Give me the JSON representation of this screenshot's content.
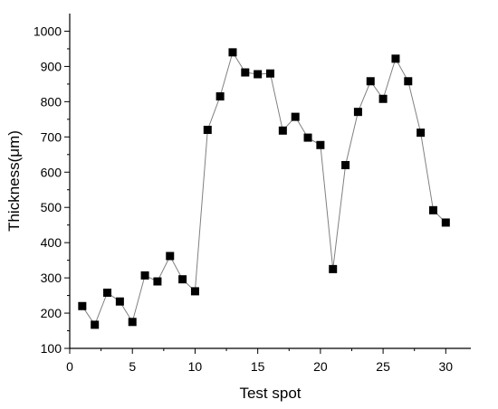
{
  "chart_data": {
    "type": "line",
    "title": "",
    "xlabel": "Test spot",
    "ylabel": "Thickness(μm)",
    "xlim": [
      0,
      32
    ],
    "ylim": [
      100,
      1050
    ],
    "xticks": [
      0,
      5,
      10,
      15,
      20,
      25,
      30
    ],
    "yticks": [
      100,
      200,
      300,
      400,
      500,
      600,
      700,
      800,
      900,
      1000
    ],
    "grid": false,
    "marker": "square",
    "line_color": "#808080",
    "marker_color": "#000000",
    "series": [
      {
        "x": [
          1,
          2,
          3,
          4,
          5,
          6,
          7,
          8,
          9,
          10,
          11,
          12,
          13,
          14,
          15,
          16,
          17,
          18,
          19,
          20,
          21,
          22,
          23,
          24,
          25,
          26,
          27,
          28,
          29,
          30
        ],
        "values": [
          220,
          167,
          258,
          233,
          175,
          307,
          290,
          362,
          296,
          262,
          720,
          815,
          940,
          883,
          878,
          880,
          718,
          757,
          698,
          677,
          325,
          620,
          771,
          858,
          808,
          922,
          858,
          712,
          492,
          457
        ]
      }
    ]
  }
}
